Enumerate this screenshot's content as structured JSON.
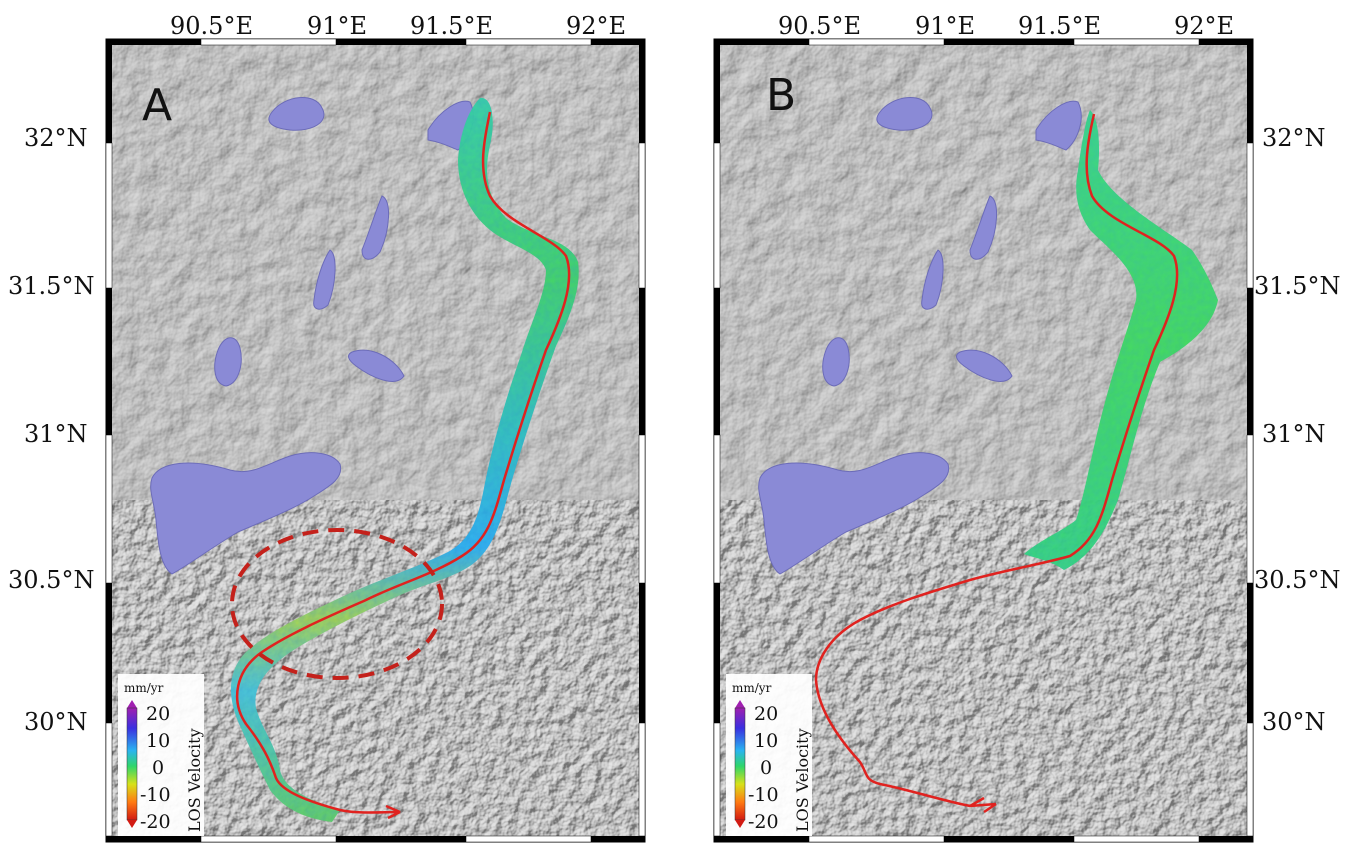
{
  "panels": [
    {
      "letter": "A",
      "lon_labels": [
        "90.5°E",
        "91°E",
        "91.5°E",
        "92°E"
      ],
      "lat_labels": [
        "32°N",
        "31.5°N",
        "31°N",
        "30.5°N",
        "30°N"
      ],
      "lat_label_side": "left",
      "highlight": "dashed-ellipse",
      "legend": {
        "unit": "mm/yr",
        "title": "LOS Velocity",
        "ticks": [
          "20",
          "10",
          "0",
          "-10",
          "-20"
        ]
      }
    },
    {
      "letter": "B",
      "lon_labels": [
        "90.5°E",
        "91°E",
        "91.5°E",
        "92°E"
      ],
      "lat_labels": [
        "32°N",
        "31.5°N",
        "31°N",
        "30.5°N",
        "30°N"
      ],
      "lat_label_side": "right",
      "highlight": "none",
      "legend": {
        "unit": "mm/yr",
        "title": "LOS Velocity",
        "ticks": [
          "20",
          "10",
          "0",
          "-10",
          "-20"
        ]
      }
    }
  ],
  "colors": {
    "terrain": "#9b9b9b",
    "lake": "#8a8ad6",
    "fault_line": "#e0221f",
    "highlight_ellipse": "#c4211b",
    "frame_black": "#000000",
    "frame_white": "#ffffff",
    "colormap": [
      "#a01fb0",
      "#3a2fe0",
      "#2ab4f0",
      "#2fd66a",
      "#d7e11a",
      "#ff7a12",
      "#d21a12"
    ]
  }
}
